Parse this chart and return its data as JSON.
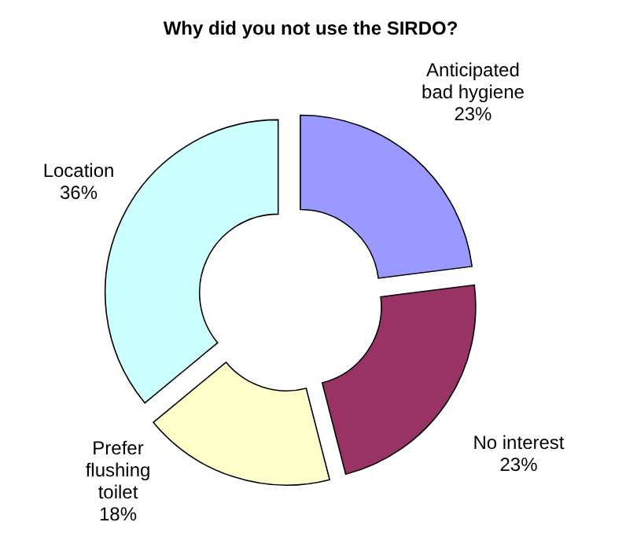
{
  "chart_data": {
    "type": "donut",
    "title": "Why did you not use the SIRDO?",
    "categories": [
      "Anticipated bad hygiene",
      "No interest",
      "Prefer flushing toilet",
      "Location"
    ],
    "values": [
      23,
      23,
      18,
      36
    ],
    "value_labels": [
      "23%",
      "23%",
      "18%",
      "36%"
    ],
    "colors": [
      "#9999ff",
      "#993366",
      "#ffffcc",
      "#ccffff"
    ],
    "legend": false
  }
}
